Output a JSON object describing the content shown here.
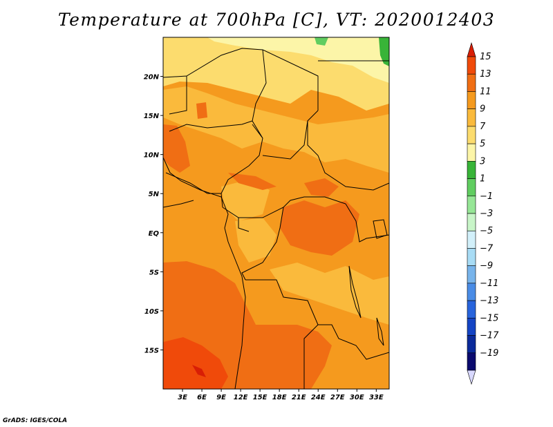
{
  "title": "Temperature at 700hPa [C], VT: 2020012403",
  "credit": "GrADS: IGES/COLA",
  "map": {
    "projection": "lat-lon",
    "lon_range": [
      0,
      35
    ],
    "lat_range": [
      -20,
      25
    ],
    "lon_ticks": [
      "3E",
      "6E",
      "9E",
      "12E",
      "15E",
      "18E",
      "21E",
      "24E",
      "27E",
      "30E",
      "33E"
    ],
    "lat_ticks": [
      "20N",
      "15N",
      "10N",
      "5N",
      "EQ",
      "5S",
      "10S",
      "15S"
    ]
  },
  "colorbar": {
    "labels": [
      "15",
      "13",
      "11",
      "9",
      "7",
      "5",
      "3",
      "1",
      "−1",
      "−3",
      "−5",
      "−7",
      "−9",
      "−11",
      "−13",
      "−15",
      "−17",
      "−19"
    ],
    "colors": [
      "#d81e05",
      "#f04a0a",
      "#f06e14",
      "#f59a1e",
      "#faba3c",
      "#fcdc6e",
      "#fcf5a8",
      "#38b438",
      "#60cd60",
      "#96e696",
      "#c8f5c8",
      "#d2f0fa",
      "#a8dcf5",
      "#78b4eb",
      "#4a8ce6",
      "#2864dc",
      "#1444c4",
      "#0a2a9a",
      "#0a0a6e",
      "#d8d8ff"
    ]
  }
}
